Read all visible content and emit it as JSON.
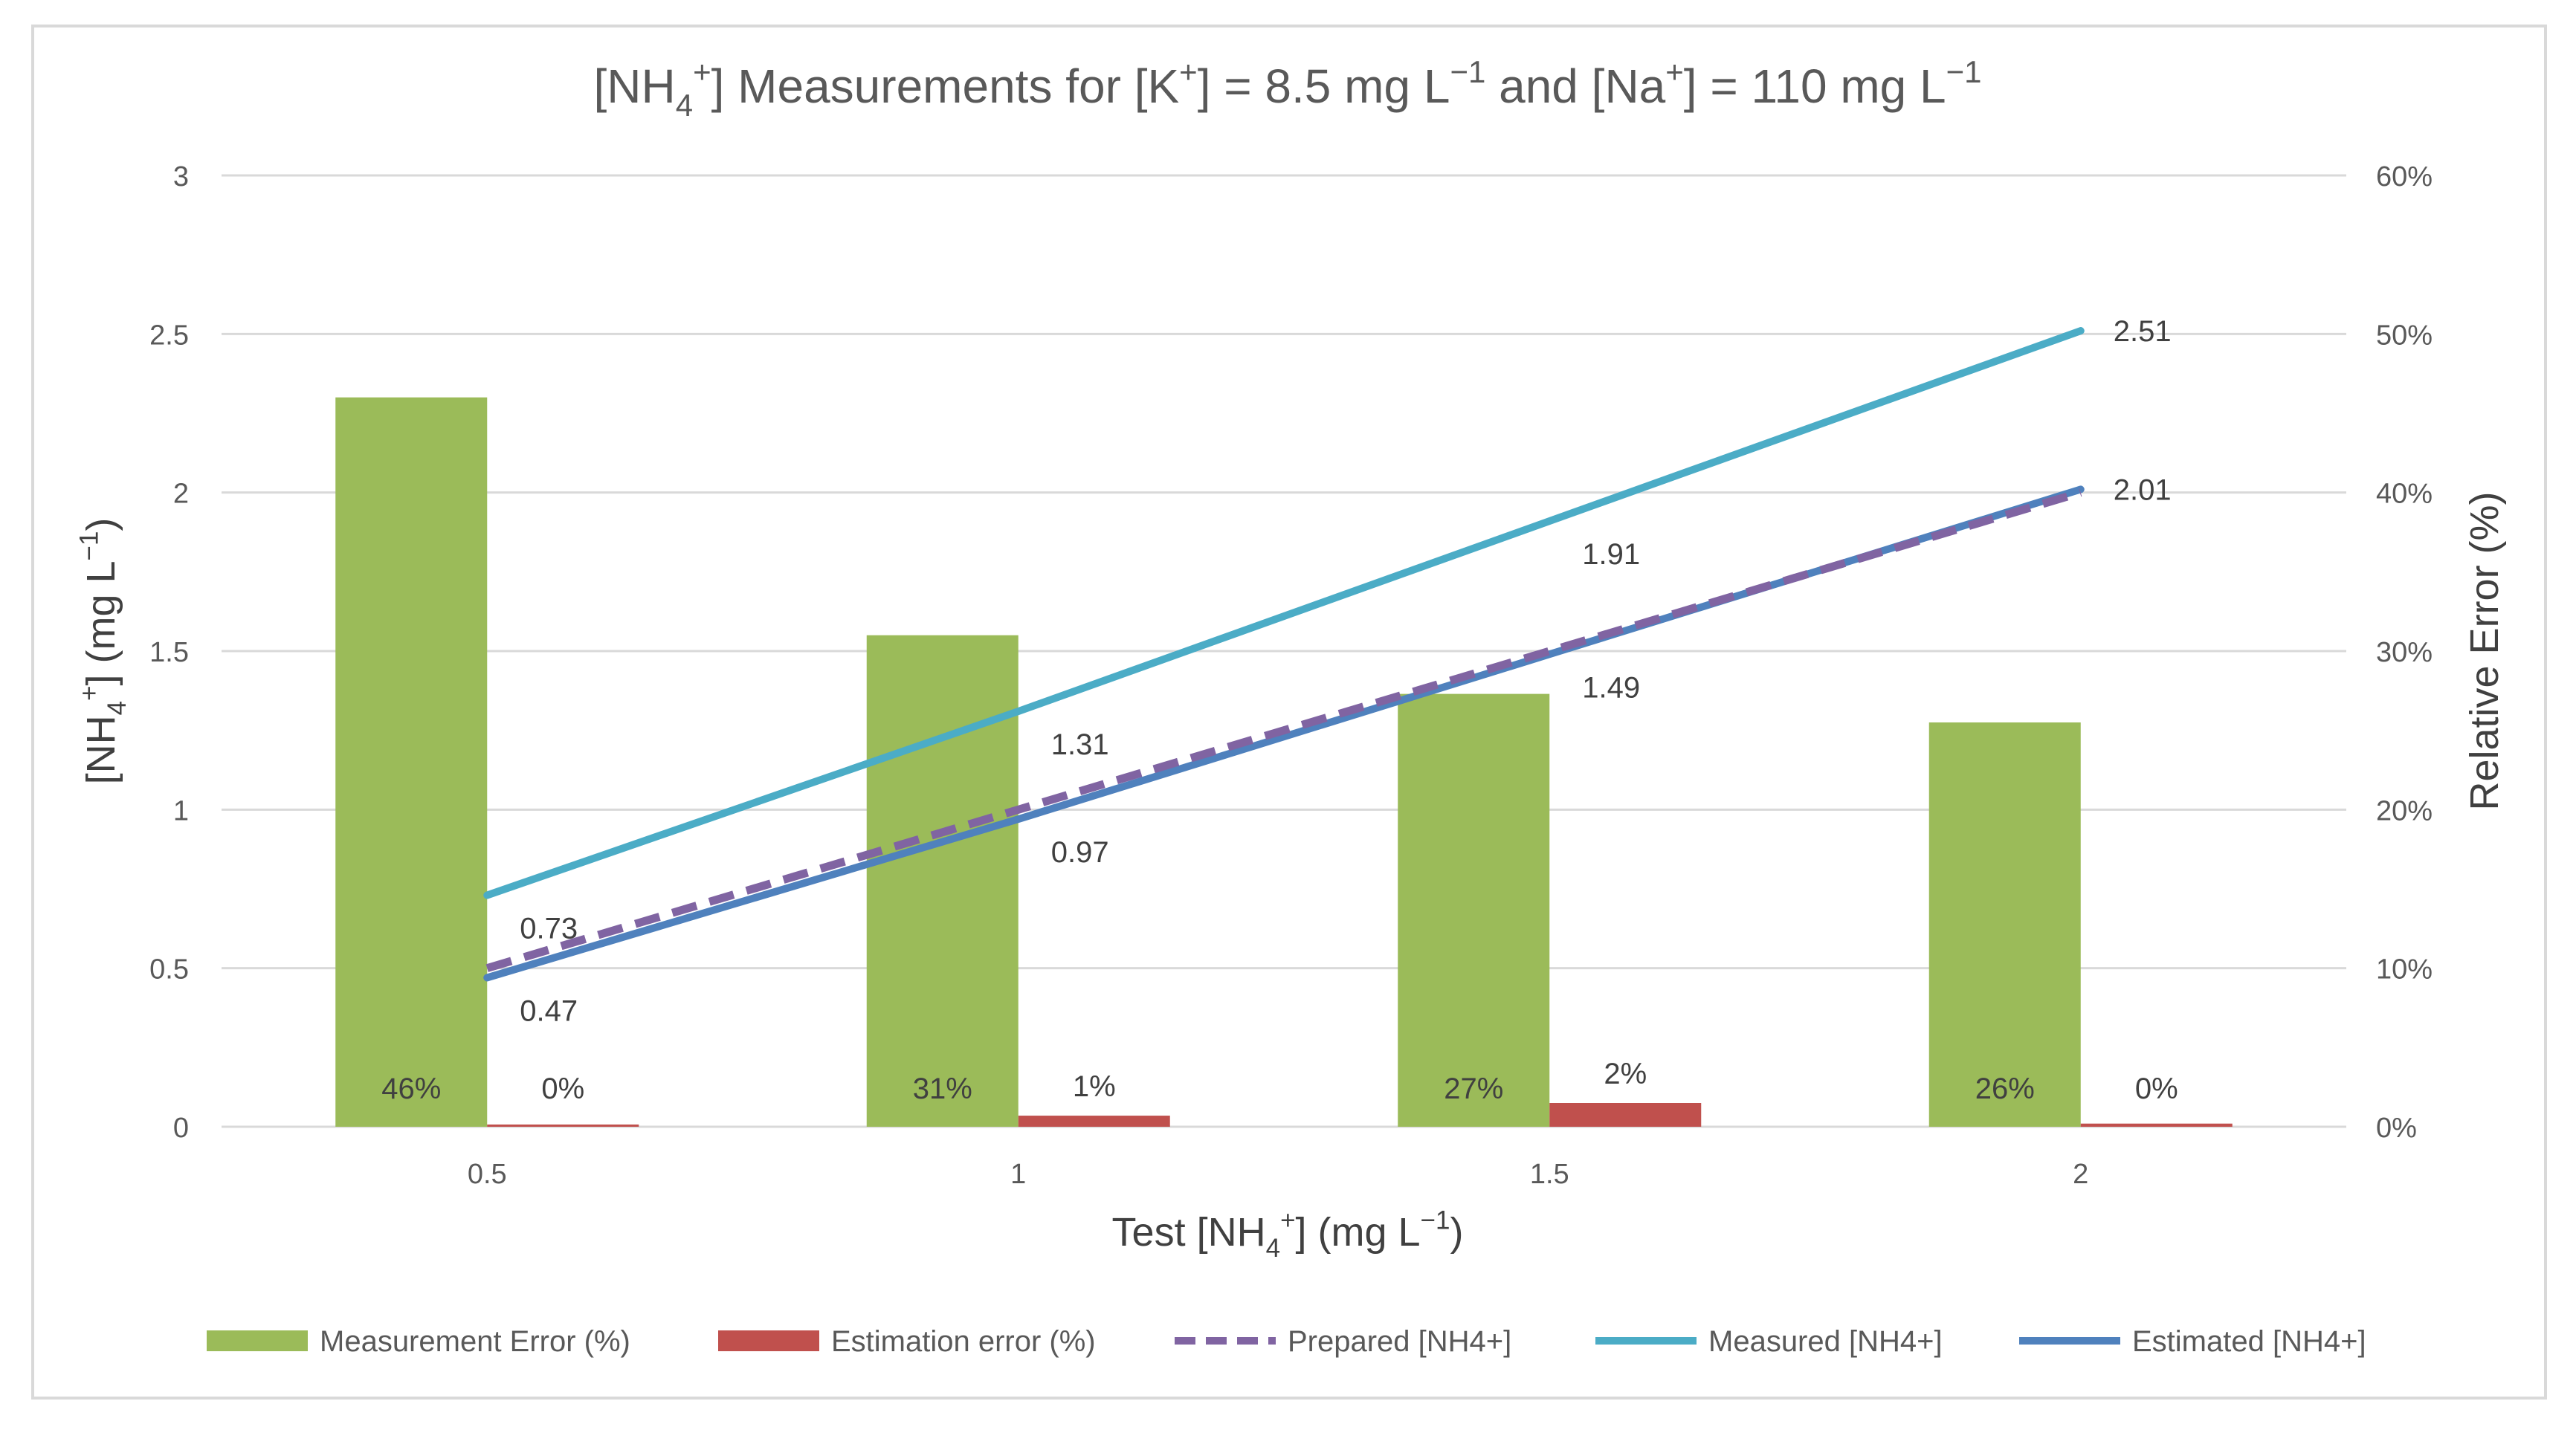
{
  "chart_data": {
    "type": "bar+line",
    "title_parts": [
      "[NH",
      "4",
      "+",
      "] Measurements for [K",
      "+",
      "] = 8.5 mg L",
      "−1",
      " and [Na",
      "+",
      "] = 110 mg L",
      "−1"
    ],
    "xlabel_parts": [
      "Test [NH",
      "4",
      "+",
      "] (mg L",
      "−1",
      ")"
    ],
    "ylabel_parts": [
      "[NH",
      "4",
      "+",
      "] (mg L",
      "−1",
      ")"
    ],
    "y2label": "Relative Error (%)",
    "categories": [
      "0.5",
      "1",
      "1.5",
      "2"
    ],
    "ylim": [
      0,
      3
    ],
    "y2lim": [
      0,
      60
    ],
    "y_ticks": [
      "0",
      "0.5",
      "1",
      "1.5",
      "2",
      "2.5",
      "3"
    ],
    "y2_ticks": [
      "0%",
      "10%",
      "20%",
      "30%",
      "40%",
      "50%",
      "60%"
    ],
    "bars": [
      {
        "name": "Measurement Error (%)",
        "axis": "secondary",
        "color": "#9BBB59",
        "values": [
          46,
          31,
          27.3,
          25.5
        ],
        "labels": [
          "46%",
          "31%",
          "27%",
          "26%"
        ]
      },
      {
        "name": "Estimation error (%)",
        "axis": "secondary",
        "color": "#C0504D",
        "values": [
          0,
          0.7,
          1.5,
          0.2
        ],
        "labels": [
          "0%",
          "1%",
          "2%",
          "0%"
        ]
      }
    ],
    "lines": [
      {
        "name": "Measured [NH4+]",
        "color": "#4BACC6",
        "dashed": false,
        "values": [
          0.73,
          1.31,
          1.91,
          2.51
        ],
        "labels": [
          "0.73",
          "1.31",
          "1.91",
          "2.51"
        ]
      },
      {
        "name": "Estimated [NH4+]",
        "color": "#4F81BD",
        "dashed": false,
        "values": [
          0.47,
          0.97,
          1.49,
          2.01
        ],
        "labels": [
          "0.47",
          "0.97",
          "1.49",
          "2.01"
        ]
      },
      {
        "name": "Prepared [NH4+]",
        "color": "#8064A2",
        "dashed": true,
        "values": [
          0.5,
          1.0,
          1.5,
          2.0
        ],
        "labels": []
      }
    ],
    "legend": [
      {
        "name": "Measurement Error (%)",
        "kind": "bar",
        "color": "#9BBB59"
      },
      {
        "name": "Estimation error (%)",
        "kind": "bar",
        "color": "#C0504D"
      },
      {
        "name": "Prepared [NH4+]",
        "kind": "dashed-line",
        "color": "#8064A2"
      },
      {
        "name": "Measured [NH4+]",
        "kind": "line",
        "color": "#4BACC6"
      },
      {
        "name": "Estimated [NH4+]",
        "kind": "line",
        "color": "#4F81BD"
      }
    ],
    "legend_position": "bottom",
    "grid": true
  }
}
